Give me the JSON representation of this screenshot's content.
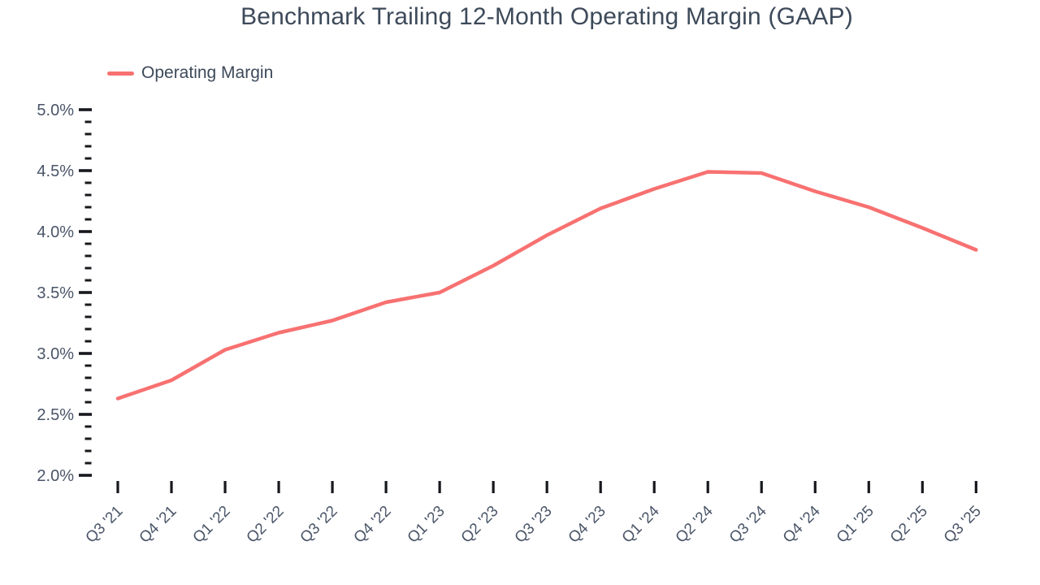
{
  "chart": {
    "title": "Benchmark Trailing 12-Month Operating Margin (GAAP)",
    "legend_label": "Operating Margin"
  },
  "chart_data": {
    "type": "line",
    "title": "Benchmark Trailing 12-Month Operating Margin (GAAP)",
    "categories": [
      "Q3 '21",
      "Q4 '21",
      "Q1 '22",
      "Q2 '22",
      "Q3 '22",
      "Q4 '22",
      "Q1 '23",
      "Q2 '23",
      "Q3 '23",
      "Q4 '23",
      "Q1 '24",
      "Q2 '24",
      "Q3 '24",
      "Q4 '24",
      "Q1 '25",
      "Q2 '25",
      "Q3 '25"
    ],
    "series": [
      {
        "name": "Operating Margin",
        "values": [
          2.63,
          2.78,
          3.03,
          3.17,
          3.27,
          3.42,
          3.5,
          3.72,
          3.97,
          4.19,
          4.35,
          4.49,
          4.48,
          4.33,
          4.2,
          4.03,
          3.85
        ]
      }
    ],
    "ylim": [
      2.0,
      5.0
    ],
    "ytick_step": 0.5,
    "ytick_minor_step": 0.1,
    "ytick_labels": [
      "5.0%",
      "4.5%",
      "4.0%",
      "3.5%",
      "3.0%",
      "2.5%",
      "2.0%"
    ],
    "xlabel": "",
    "ylabel": "",
    "grid": false,
    "legend_position": "top-left",
    "x_label_rotation_deg": -45,
    "line_color": "#f87171",
    "title_color": "#3d4a5a",
    "label_color": "#4a5568",
    "tick_color": "#16181d"
  }
}
